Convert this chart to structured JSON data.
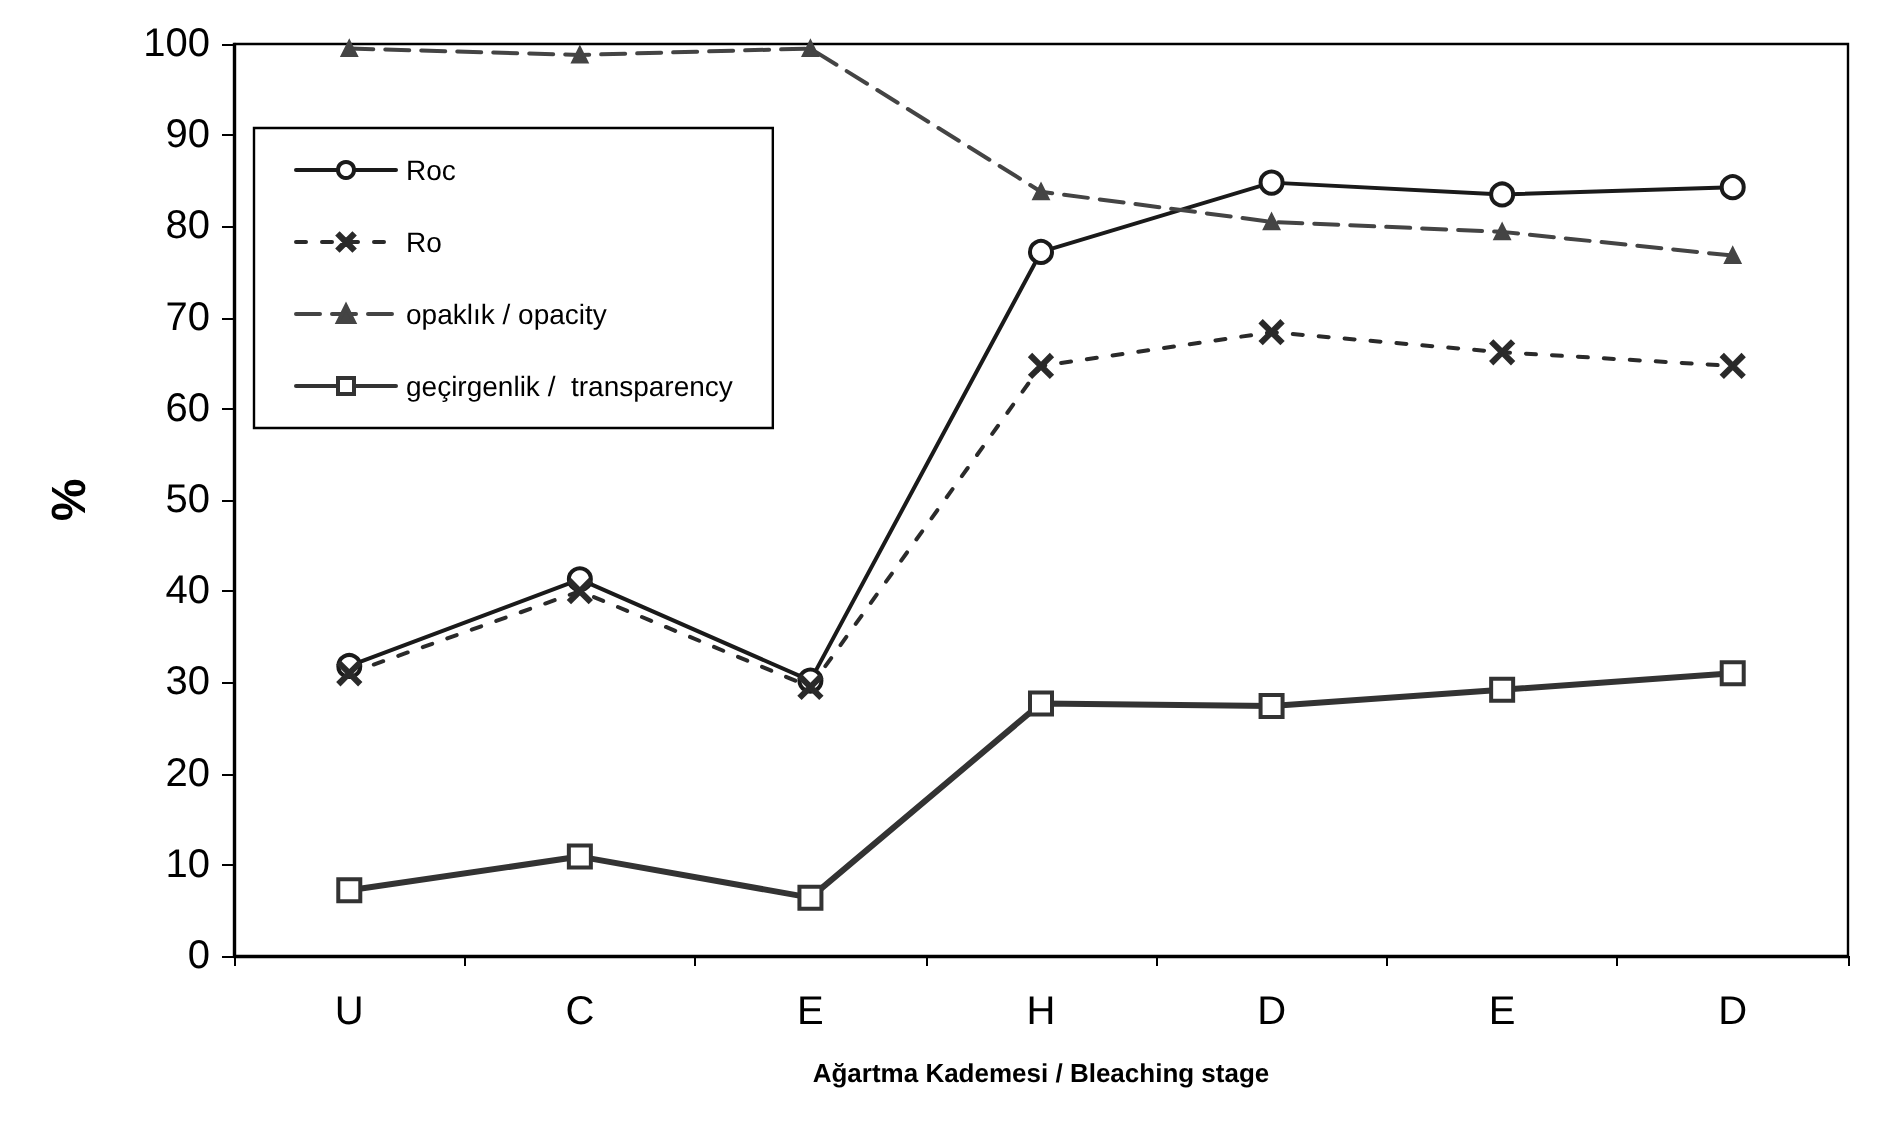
{
  "chart_data": {
    "type": "line",
    "xlabel": "Ağartma Kademesi / Bleaching stage",
    "ylabel": "%",
    "categories": [
      "U",
      "C",
      "E",
      "H",
      "D",
      "E",
      "D"
    ],
    "ylim": [
      0,
      100
    ],
    "yticks": [
      0,
      10,
      20,
      30,
      40,
      50,
      60,
      70,
      80,
      90,
      100
    ],
    "grid": false,
    "legend": "top left",
    "series": [
      {
        "name": "Roc",
        "color": "#1a1a1a",
        "marker": "circle",
        "line_style": "solid",
        "values": [
          31.8,
          41.3,
          30.2,
          77.2,
          84.8,
          83.5,
          84.3
        ]
      },
      {
        "name": "Ro",
        "color": "#2a2a2a",
        "marker": "cross",
        "line_style": "dotted",
        "values": [
          31,
          40,
          29.5,
          64.7,
          68.4,
          66.2,
          64.7
        ]
      },
      {
        "name": "opaklık / opacity",
        "color": "#444444",
        "marker": "triangle",
        "line_style": "dashed",
        "values": [
          99.5,
          98.8,
          99.5,
          83.8,
          80.5,
          79.4,
          76.8
        ]
      },
      {
        "name": "geçirgenlik /  transparency",
        "color": "#333333",
        "marker": "square",
        "line_style": "solid",
        "values": [
          7.2,
          10.9,
          6.4,
          27.7,
          27.4,
          29.2,
          31
        ]
      }
    ]
  }
}
